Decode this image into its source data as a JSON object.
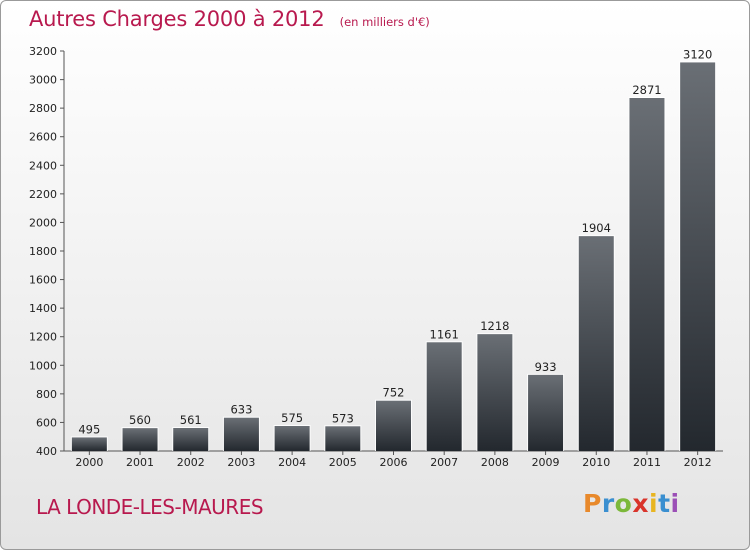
{
  "title": {
    "main": "Autres Charges 2000 à 2012",
    "unit": "(en milliers d'€)"
  },
  "location": "LA LONDE-LES-MAURES",
  "logo": {
    "letters": [
      "P",
      "r",
      "o",
      "x",
      "i",
      "t",
      "i"
    ],
    "colors": [
      "#e8892b",
      "#3a8fd0",
      "#7cb83a",
      "#d9342b",
      "#e8b521",
      "#3a8fd0",
      "#9b4fb6"
    ]
  },
  "colors": {
    "title": "#b8194e",
    "bar_top": "#6a6f75",
    "bar_bottom": "#23282e",
    "axis": "#555555"
  },
  "chart_data": {
    "type": "bar",
    "title": "Autres Charges 2000 à 2012",
    "subtitle": "(en milliers d'€)",
    "xlabel": "",
    "ylabel": "",
    "categories": [
      "2000",
      "2001",
      "2002",
      "2003",
      "2004",
      "2005",
      "2006",
      "2007",
      "2008",
      "2009",
      "2010",
      "2011",
      "2012"
    ],
    "values": [
      495,
      560,
      561,
      633,
      575,
      573,
      752,
      1161,
      1218,
      933,
      1904,
      2871,
      3120
    ],
    "ylim": [
      400,
      3200
    ],
    "yticks": [
      400,
      600,
      800,
      1000,
      1200,
      1400,
      1600,
      1800,
      2000,
      2200,
      2400,
      2600,
      2800,
      3000,
      3200
    ],
    "grid": false,
    "legend": "none"
  }
}
